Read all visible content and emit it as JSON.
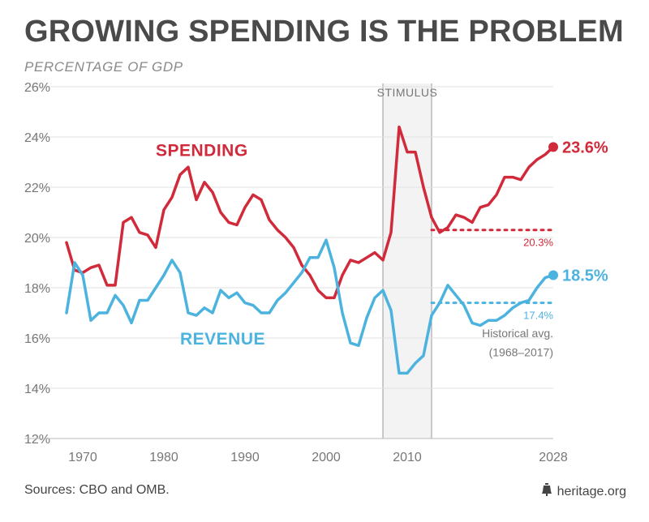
{
  "header": {
    "title": "GROWING SPENDING IS THE PROBLEM",
    "subtitle": "PERCENTAGE OF GDP"
  },
  "footer": {
    "sources": "Sources: CBO and OMB.",
    "site": "heritage.org",
    "site_icon": "liberty-bell-icon"
  },
  "colors": {
    "spending": "#d12a3a",
    "revenue": "#4cb3df",
    "text": "#4a4a4a",
    "grid": "#e2e2e2",
    "stimulus_fill": "#f3f3f3"
  },
  "chart_data": {
    "type": "line",
    "title": "GROWING SPENDING IS THE PROBLEM",
    "ylabel": "PERCENTAGE OF GDP",
    "ylim": [
      12,
      26
    ],
    "xlim": [
      1968,
      2028
    ],
    "y_ticks": [
      "12%",
      "14%",
      "16%",
      "18%",
      "20%",
      "22%",
      "24%",
      "26%"
    ],
    "y_tick_values": [
      12,
      14,
      16,
      18,
      20,
      22,
      24,
      26
    ],
    "x_ticks": [
      "1970",
      "1980",
      "1990",
      "2000",
      "2010",
      "2028"
    ],
    "x_tick_values": [
      1970,
      1980,
      1990,
      2000,
      2010,
      2028
    ],
    "grid": true,
    "shaded_region": {
      "label": "STIMULUS",
      "x_start": 2007,
      "x_end": 2013
    },
    "series": [
      {
        "name": "SPENDING",
        "color": "#d12a3a",
        "end_label": "23.6%",
        "x": [
          1968,
          1969,
          1970,
          1971,
          1972,
          1973,
          1974,
          1975,
          1976,
          1977,
          1978,
          1979,
          1980,
          1981,
          1982,
          1983,
          1984,
          1985,
          1986,
          1987,
          1988,
          1989,
          1990,
          1991,
          1992,
          1993,
          1994,
          1995,
          1996,
          1997,
          1998,
          1999,
          2000,
          2001,
          2002,
          2003,
          2004,
          2005,
          2006,
          2007,
          2008,
          2009,
          2010,
          2011,
          2012,
          2013,
          2014,
          2015,
          2016,
          2017,
          2018,
          2019,
          2020,
          2021,
          2022,
          2023,
          2024,
          2025,
          2026,
          2027,
          2028
        ],
        "values": [
          19.8,
          18.7,
          18.6,
          18.8,
          18.9,
          18.1,
          18.1,
          20.6,
          20.8,
          20.2,
          20.1,
          19.6,
          21.1,
          21.6,
          22.5,
          22.8,
          21.5,
          22.2,
          21.8,
          21.0,
          20.6,
          20.5,
          21.2,
          21.7,
          21.5,
          20.7,
          20.3,
          20.0,
          19.6,
          18.9,
          18.5,
          17.9,
          17.6,
          17.6,
          18.5,
          19.1,
          19.0,
          19.2,
          19.4,
          19.1,
          20.2,
          24.4,
          23.4,
          23.4,
          22.0,
          20.8,
          20.2,
          20.4,
          20.9,
          20.8,
          20.6,
          21.2,
          21.3,
          21.7,
          22.4,
          22.4,
          22.3,
          22.8,
          23.1,
          23.3,
          23.6
        ]
      },
      {
        "name": "REVENUE",
        "color": "#4cb3df",
        "end_label": "18.5%",
        "x": [
          1968,
          1969,
          1970,
          1971,
          1972,
          1973,
          1974,
          1975,
          1976,
          1977,
          1978,
          1979,
          1980,
          1981,
          1982,
          1983,
          1984,
          1985,
          1986,
          1987,
          1988,
          1989,
          1990,
          1991,
          1992,
          1993,
          1994,
          1995,
          1996,
          1997,
          1998,
          1999,
          2000,
          2001,
          2002,
          2003,
          2004,
          2005,
          2006,
          2007,
          2008,
          2009,
          2010,
          2011,
          2012,
          2013,
          2014,
          2015,
          2016,
          2017,
          2018,
          2019,
          2020,
          2021,
          2022,
          2023,
          2024,
          2025,
          2026,
          2027,
          2028
        ],
        "values": [
          17.0,
          19.0,
          18.5,
          16.7,
          17.0,
          17.0,
          17.7,
          17.3,
          16.6,
          17.5,
          17.5,
          18.0,
          18.5,
          19.1,
          18.6,
          17.0,
          16.9,
          17.2,
          17.0,
          17.9,
          17.6,
          17.8,
          17.4,
          17.3,
          17.0,
          17.0,
          17.5,
          17.8,
          18.2,
          18.6,
          19.2,
          19.2,
          19.9,
          18.8,
          17.0,
          15.8,
          15.7,
          16.8,
          17.6,
          17.9,
          17.1,
          14.6,
          14.6,
          15.0,
          15.3,
          16.9,
          17.4,
          18.1,
          17.7,
          17.3,
          16.6,
          16.5,
          16.7,
          16.7,
          16.9,
          17.2,
          17.4,
          17.5,
          18.0,
          18.4,
          18.5
        ]
      }
    ],
    "reference_lines": [
      {
        "series": "SPENDING",
        "value": 20.3,
        "label": "20.3%",
        "x_start": 2013,
        "x_end": 2028
      },
      {
        "series": "REVENUE",
        "value": 17.4,
        "label": "17.4%",
        "x_start": 2013,
        "x_end": 2028
      }
    ],
    "note": {
      "line1": "Historical avg.",
      "line2": "(1968–2017)"
    }
  }
}
